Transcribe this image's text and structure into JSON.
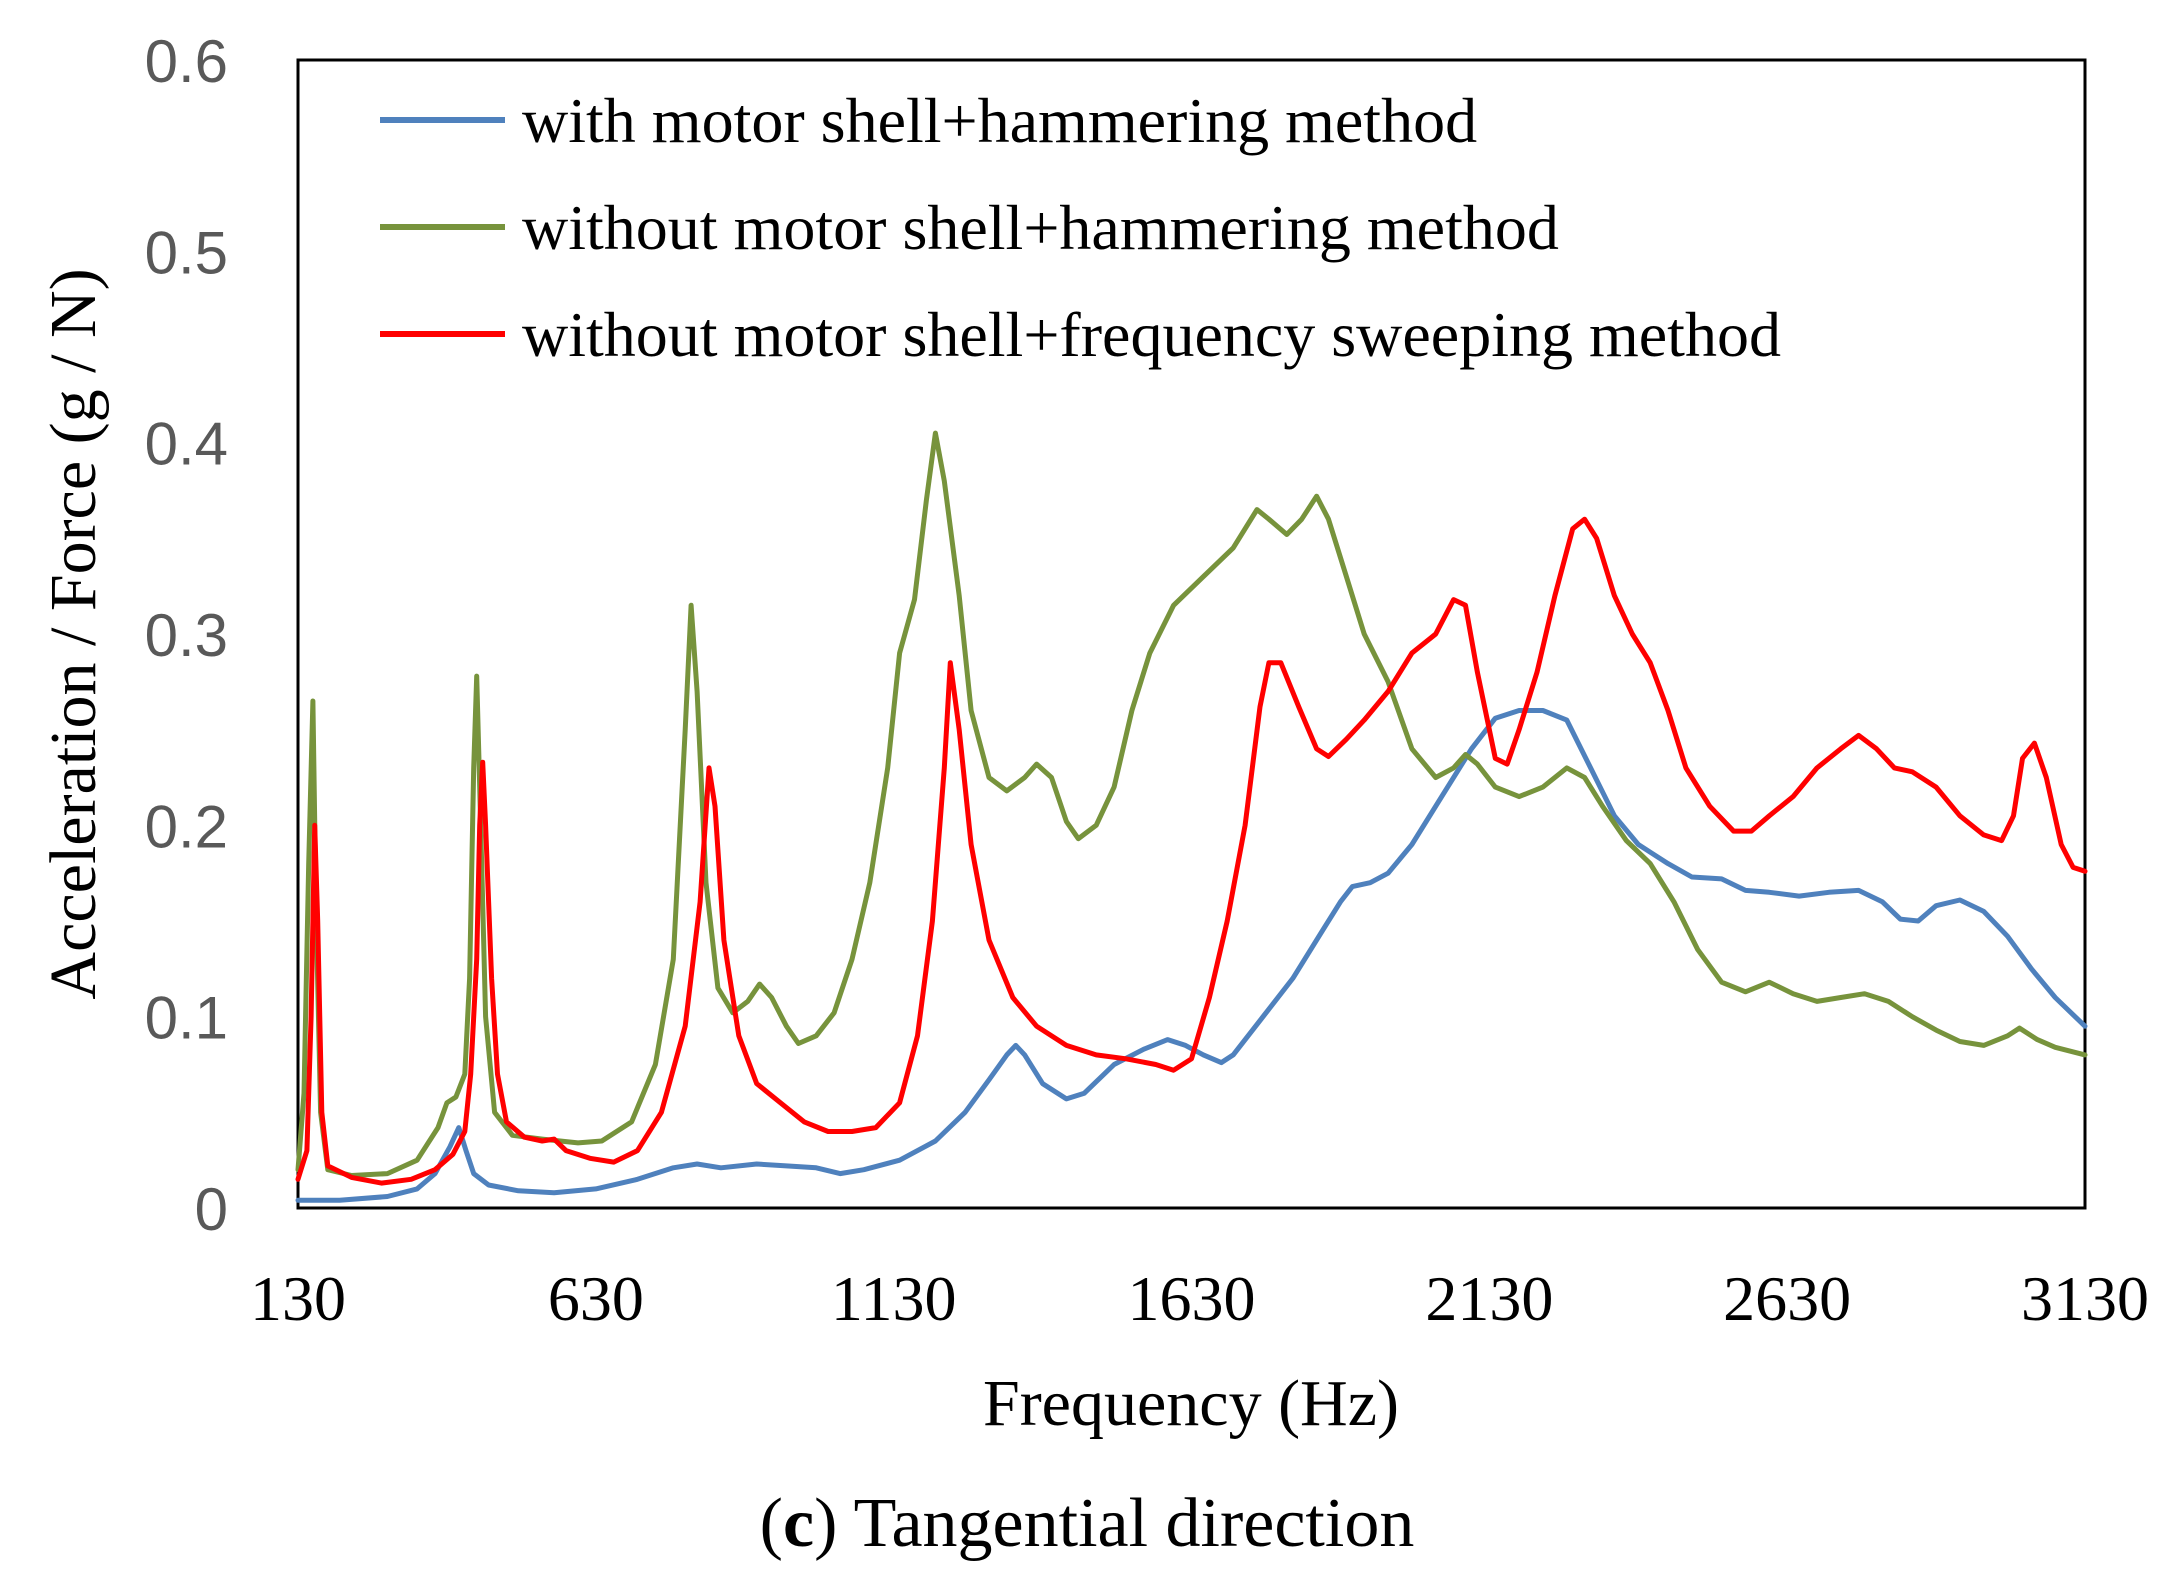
{
  "caption": {
    "letter": "c",
    "text": "Tangential direction"
  },
  "chart_data": {
    "type": "line",
    "title": "",
    "xlabel": "Frequency (Hz)",
    "ylabel": "Acceleration / Force (g / N)",
    "xlim": [
      130,
      3130
    ],
    "ylim": [
      0,
      0.6
    ],
    "x_ticks": [
      130,
      630,
      1130,
      1630,
      2130,
      2630,
      3130
    ],
    "x_tick_labels": [
      "130",
      "630",
      "1130",
      "1630",
      "2130",
      "2630",
      "3130"
    ],
    "y_ticks": [
      0,
      0.1,
      0.2,
      0.3,
      0.4,
      0.5,
      0.6
    ],
    "y_tick_labels": [
      "0",
      "0.1",
      "0.2",
      "0.3",
      "0.4",
      "0.5",
      "0.6"
    ],
    "grid": false,
    "legend_position": "top-left",
    "series": [
      {
        "name": "with motor shell+hammering method",
        "color": "#4F81BD",
        "points": [
          [
            130,
            0.004
          ],
          [
            200,
            0.004
          ],
          [
            280,
            0.006
          ],
          [
            330,
            0.01
          ],
          [
            360,
            0.018
          ],
          [
            385,
            0.032
          ],
          [
            400,
            0.042
          ],
          [
            412,
            0.03
          ],
          [
            425,
            0.018
          ],
          [
            450,
            0.012
          ],
          [
            500,
            0.009
          ],
          [
            560,
            0.008
          ],
          [
            630,
            0.01
          ],
          [
            700,
            0.015
          ],
          [
            760,
            0.021
          ],
          [
            800,
            0.023
          ],
          [
            840,
            0.021
          ],
          [
            900,
            0.023
          ],
          [
            950,
            0.022
          ],
          [
            1000,
            0.021
          ],
          [
            1040,
            0.018
          ],
          [
            1080,
            0.02
          ],
          [
            1140,
            0.025
          ],
          [
            1200,
            0.035
          ],
          [
            1250,
            0.05
          ],
          [
            1290,
            0.067
          ],
          [
            1320,
            0.08
          ],
          [
            1335,
            0.085
          ],
          [
            1350,
            0.08
          ],
          [
            1380,
            0.065
          ],
          [
            1420,
            0.057
          ],
          [
            1450,
            0.06
          ],
          [
            1500,
            0.075
          ],
          [
            1550,
            0.083
          ],
          [
            1590,
            0.088
          ],
          [
            1620,
            0.085
          ],
          [
            1650,
            0.08
          ],
          [
            1680,
            0.076
          ],
          [
            1700,
            0.08
          ],
          [
            1750,
            0.1
          ],
          [
            1800,
            0.12
          ],
          [
            1850,
            0.145
          ],
          [
            1880,
            0.16
          ],
          [
            1900,
            0.168
          ],
          [
            1930,
            0.17
          ],
          [
            1960,
            0.175
          ],
          [
            2000,
            0.19
          ],
          [
            2050,
            0.215
          ],
          [
            2100,
            0.24
          ],
          [
            2140,
            0.256
          ],
          [
            2180,
            0.26
          ],
          [
            2220,
            0.26
          ],
          [
            2260,
            0.255
          ],
          [
            2300,
            0.23
          ],
          [
            2340,
            0.205
          ],
          [
            2380,
            0.19
          ],
          [
            2430,
            0.18
          ],
          [
            2470,
            0.173
          ],
          [
            2520,
            0.172
          ],
          [
            2560,
            0.166
          ],
          [
            2600,
            0.165
          ],
          [
            2650,
            0.163
          ],
          [
            2700,
            0.165
          ],
          [
            2750,
            0.166
          ],
          [
            2790,
            0.16
          ],
          [
            2820,
            0.151
          ],
          [
            2850,
            0.15
          ],
          [
            2880,
            0.158
          ],
          [
            2920,
            0.161
          ],
          [
            2960,
            0.155
          ],
          [
            3000,
            0.142
          ],
          [
            3040,
            0.125
          ],
          [
            3080,
            0.11
          ],
          [
            3130,
            0.095
          ]
        ]
      },
      {
        "name": "without motor shell+hammering method",
        "color": "#77933C",
        "points": [
          [
            130,
            0.02
          ],
          [
            140,
            0.06
          ],
          [
            148,
            0.18
          ],
          [
            155,
            0.265
          ],
          [
            160,
            0.16
          ],
          [
            168,
            0.05
          ],
          [
            180,
            0.02
          ],
          [
            220,
            0.017
          ],
          [
            280,
            0.018
          ],
          [
            330,
            0.025
          ],
          [
            365,
            0.042
          ],
          [
            380,
            0.055
          ],
          [
            395,
            0.058
          ],
          [
            410,
            0.07
          ],
          [
            418,
            0.12
          ],
          [
            425,
            0.23
          ],
          [
            430,
            0.278
          ],
          [
            435,
            0.22
          ],
          [
            445,
            0.1
          ],
          [
            460,
            0.05
          ],
          [
            490,
            0.038
          ],
          [
            540,
            0.036
          ],
          [
            600,
            0.034
          ],
          [
            640,
            0.035
          ],
          [
            690,
            0.045
          ],
          [
            730,
            0.075
          ],
          [
            760,
            0.13
          ],
          [
            780,
            0.25
          ],
          [
            790,
            0.315
          ],
          [
            800,
            0.27
          ],
          [
            815,
            0.17
          ],
          [
            835,
            0.115
          ],
          [
            860,
            0.102
          ],
          [
            885,
            0.108
          ],
          [
            905,
            0.117
          ],
          [
            925,
            0.11
          ],
          [
            950,
            0.095
          ],
          [
            970,
            0.086
          ],
          [
            1000,
            0.09
          ],
          [
            1030,
            0.102
          ],
          [
            1060,
            0.13
          ],
          [
            1090,
            0.17
          ],
          [
            1120,
            0.23
          ],
          [
            1140,
            0.29
          ],
          [
            1165,
            0.318
          ],
          [
            1185,
            0.37
          ],
          [
            1200,
            0.405
          ],
          [
            1215,
            0.38
          ],
          [
            1240,
            0.32
          ],
          [
            1260,
            0.26
          ],
          [
            1290,
            0.225
          ],
          [
            1320,
            0.218
          ],
          [
            1350,
            0.225
          ],
          [
            1370,
            0.232
          ],
          [
            1395,
            0.225
          ],
          [
            1420,
            0.202
          ],
          [
            1440,
            0.193
          ],
          [
            1470,
            0.2
          ],
          [
            1500,
            0.22
          ],
          [
            1530,
            0.26
          ],
          [
            1560,
            0.29
          ],
          [
            1600,
            0.315
          ],
          [
            1650,
            0.33
          ],
          [
            1700,
            0.345
          ],
          [
            1740,
            0.365
          ],
          [
            1760,
            0.36
          ],
          [
            1790,
            0.352
          ],
          [
            1815,
            0.36
          ],
          [
            1840,
            0.372
          ],
          [
            1860,
            0.36
          ],
          [
            1890,
            0.33
          ],
          [
            1920,
            0.3
          ],
          [
            1960,
            0.275
          ],
          [
            2000,
            0.24
          ],
          [
            2040,
            0.225
          ],
          [
            2070,
            0.23
          ],
          [
            2090,
            0.237
          ],
          [
            2110,
            0.232
          ],
          [
            2140,
            0.22
          ],
          [
            2180,
            0.215
          ],
          [
            2220,
            0.22
          ],
          [
            2260,
            0.23
          ],
          [
            2290,
            0.225
          ],
          [
            2320,
            0.21
          ],
          [
            2360,
            0.192
          ],
          [
            2400,
            0.18
          ],
          [
            2440,
            0.16
          ],
          [
            2480,
            0.135
          ],
          [
            2520,
            0.118
          ],
          [
            2560,
            0.113
          ],
          [
            2600,
            0.118
          ],
          [
            2640,
            0.112
          ],
          [
            2680,
            0.108
          ],
          [
            2720,
            0.11
          ],
          [
            2760,
            0.112
          ],
          [
            2800,
            0.108
          ],
          [
            2840,
            0.1
          ],
          [
            2880,
            0.093
          ],
          [
            2920,
            0.087
          ],
          [
            2960,
            0.085
          ],
          [
            3000,
            0.09
          ],
          [
            3020,
            0.094
          ],
          [
            3050,
            0.088
          ],
          [
            3080,
            0.084
          ],
          [
            3130,
            0.08
          ]
        ]
      },
      {
        "name": "without motor shell+frequency sweeping method",
        "color": "#FF0000",
        "points": [
          [
            130,
            0.015
          ],
          [
            145,
            0.03
          ],
          [
            152,
            0.1
          ],
          [
            158,
            0.2
          ],
          [
            163,
            0.15
          ],
          [
            170,
            0.05
          ],
          [
            180,
            0.022
          ],
          [
            220,
            0.016
          ],
          [
            270,
            0.013
          ],
          [
            320,
            0.015
          ],
          [
            360,
            0.02
          ],
          [
            390,
            0.028
          ],
          [
            410,
            0.04
          ],
          [
            420,
            0.07
          ],
          [
            430,
            0.13
          ],
          [
            435,
            0.2
          ],
          [
            440,
            0.233
          ],
          [
            445,
            0.2
          ],
          [
            455,
            0.12
          ],
          [
            465,
            0.07
          ],
          [
            480,
            0.045
          ],
          [
            510,
            0.037
          ],
          [
            540,
            0.035
          ],
          [
            560,
            0.036
          ],
          [
            580,
            0.03
          ],
          [
            620,
            0.026
          ],
          [
            660,
            0.024
          ],
          [
            700,
            0.03
          ],
          [
            740,
            0.05
          ],
          [
            780,
            0.095
          ],
          [
            805,
            0.16
          ],
          [
            820,
            0.23
          ],
          [
            830,
            0.21
          ],
          [
            845,
            0.14
          ],
          [
            870,
            0.09
          ],
          [
            900,
            0.065
          ],
          [
            940,
            0.055
          ],
          [
            980,
            0.045
          ],
          [
            1020,
            0.04
          ],
          [
            1060,
            0.04
          ],
          [
            1100,
            0.042
          ],
          [
            1140,
            0.055
          ],
          [
            1170,
            0.09
          ],
          [
            1195,
            0.15
          ],
          [
            1215,
            0.23
          ],
          [
            1225,
            0.285
          ],
          [
            1240,
            0.25
          ],
          [
            1260,
            0.19
          ],
          [
            1290,
            0.14
          ],
          [
            1330,
            0.11
          ],
          [
            1370,
            0.095
          ],
          [
            1420,
            0.085
          ],
          [
            1470,
            0.08
          ],
          [
            1520,
            0.078
          ],
          [
            1570,
            0.075
          ],
          [
            1600,
            0.072
          ],
          [
            1630,
            0.078
          ],
          [
            1660,
            0.11
          ],
          [
            1690,
            0.15
          ],
          [
            1720,
            0.2
          ],
          [
            1745,
            0.262
          ],
          [
            1760,
            0.285
          ],
          [
            1780,
            0.285
          ],
          [
            1810,
            0.262
          ],
          [
            1840,
            0.24
          ],
          [
            1860,
            0.236
          ],
          [
            1890,
            0.245
          ],
          [
            1920,
            0.255
          ],
          [
            1960,
            0.27
          ],
          [
            2000,
            0.29
          ],
          [
            2040,
            0.3
          ],
          [
            2070,
            0.318
          ],
          [
            2090,
            0.315
          ],
          [
            2110,
            0.28
          ],
          [
            2140,
            0.235
          ],
          [
            2160,
            0.232
          ],
          [
            2180,
            0.25
          ],
          [
            2210,
            0.28
          ],
          [
            2240,
            0.32
          ],
          [
            2270,
            0.355
          ],
          [
            2290,
            0.36
          ],
          [
            2310,
            0.35
          ],
          [
            2340,
            0.32
          ],
          [
            2370,
            0.3
          ],
          [
            2400,
            0.285
          ],
          [
            2430,
            0.26
          ],
          [
            2460,
            0.23
          ],
          [
            2500,
            0.21
          ],
          [
            2540,
            0.197
          ],
          [
            2570,
            0.197
          ],
          [
            2600,
            0.205
          ],
          [
            2640,
            0.215
          ],
          [
            2680,
            0.23
          ],
          [
            2720,
            0.24
          ],
          [
            2750,
            0.247
          ],
          [
            2780,
            0.24
          ],
          [
            2810,
            0.23
          ],
          [
            2840,
            0.228
          ],
          [
            2880,
            0.22
          ],
          [
            2920,
            0.205
          ],
          [
            2960,
            0.195
          ],
          [
            2990,
            0.192
          ],
          [
            3010,
            0.205
          ],
          [
            3025,
            0.235
          ],
          [
            3045,
            0.243
          ],
          [
            3065,
            0.225
          ],
          [
            3090,
            0.19
          ],
          [
            3110,
            0.178
          ],
          [
            3130,
            0.176
          ]
        ]
      }
    ]
  }
}
